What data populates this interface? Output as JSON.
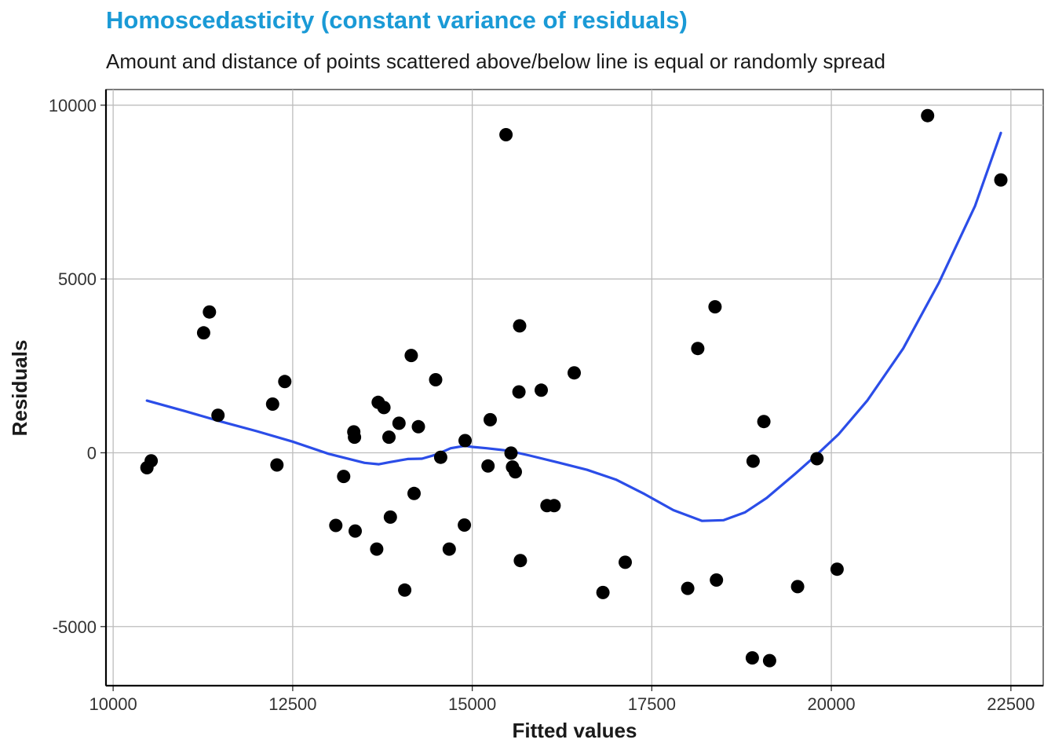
{
  "chart_data": {
    "type": "scatter",
    "title": "Homoscedasticity (constant variance of residuals)",
    "subtitle": "Amount and distance of points scattered above/below line is equal or randomly spread",
    "xlabel": "Fitted values",
    "ylabel": "Residuals",
    "xlim": [
      9900,
      22950
    ],
    "ylim": [
      -6700,
      10450
    ],
    "xticks": [
      10000,
      12500,
      15000,
      17500,
      20000,
      22500
    ],
    "yticks": [
      -5000,
      0,
      5000,
      10000
    ],
    "xtick_labels": [
      "10000",
      "12500",
      "15000",
      "17500",
      "20000",
      "22500"
    ],
    "ytick_labels": [
      "-5000",
      "0",
      "5000",
      "10000"
    ],
    "grid": true,
    "point_color": "#000000",
    "line_color": "#2b4de8",
    "series": [
      {
        "type": "scatter",
        "x": [
          10470,
          10530,
          11260,
          11340,
          11460,
          12220,
          12280,
          12390,
          13100,
          13210,
          13350,
          13360,
          13370,
          13690,
          13670,
          13770,
          13840,
          13860,
          13980,
          14060,
          14150,
          14190,
          14250,
          14490,
          14560,
          14680,
          14890,
          14900,
          15220,
          15250,
          15470,
          15540,
          15560,
          15600,
          15650,
          15660,
          15670,
          15960,
          16040,
          16140,
          16420,
          16820,
          17130,
          18000,
          18140,
          18380,
          18400,
          18900,
          18910,
          19060,
          19140,
          19530,
          19800,
          20080,
          21340,
          22360
        ],
        "y": [
          -430,
          -230,
          3450,
          4050,
          1080,
          1400,
          -350,
          2050,
          -2090,
          -680,
          600,
          450,
          -2250,
          1450,
          -2770,
          1300,
          450,
          -1850,
          850,
          -3950,
          2800,
          -1170,
          750,
          2100,
          -130,
          -2770,
          -2080,
          350,
          -380,
          950,
          9150,
          -10,
          -410,
          -550,
          1750,
          3650,
          -3100,
          1800,
          -1520,
          -1520,
          2300,
          -4020,
          -3150,
          -3900,
          3000,
          4200,
          -3660,
          -5900,
          -240,
          900,
          -5980,
          -3850,
          -170,
          -3350,
          9700,
          7850
        ]
      },
      {
        "type": "line",
        "name": "smooth",
        "x": [
          10470,
          11000,
          11500,
          12000,
          12500,
          13000,
          13500,
          13700,
          13850,
          14100,
          14300,
          14500,
          14700,
          14900,
          15000,
          15200,
          15500,
          15800,
          16200,
          16600,
          17000,
          17400,
          17800,
          18200,
          18500,
          18800,
          19100,
          19500,
          19800,
          20100,
          20500,
          21000,
          21500,
          22000,
          22360
        ],
        "y": [
          1500,
          1200,
          900,
          620,
          320,
          -30,
          -290,
          -330,
          -270,
          -180,
          -170,
          -50,
          130,
          200,
          170,
          130,
          60,
          -80,
          -280,
          -490,
          -770,
          -1190,
          -1650,
          -1960,
          -1940,
          -1710,
          -1300,
          -600,
          -50,
          530,
          1500,
          3000,
          4900,
          7100,
          9200
        ]
      }
    ]
  }
}
